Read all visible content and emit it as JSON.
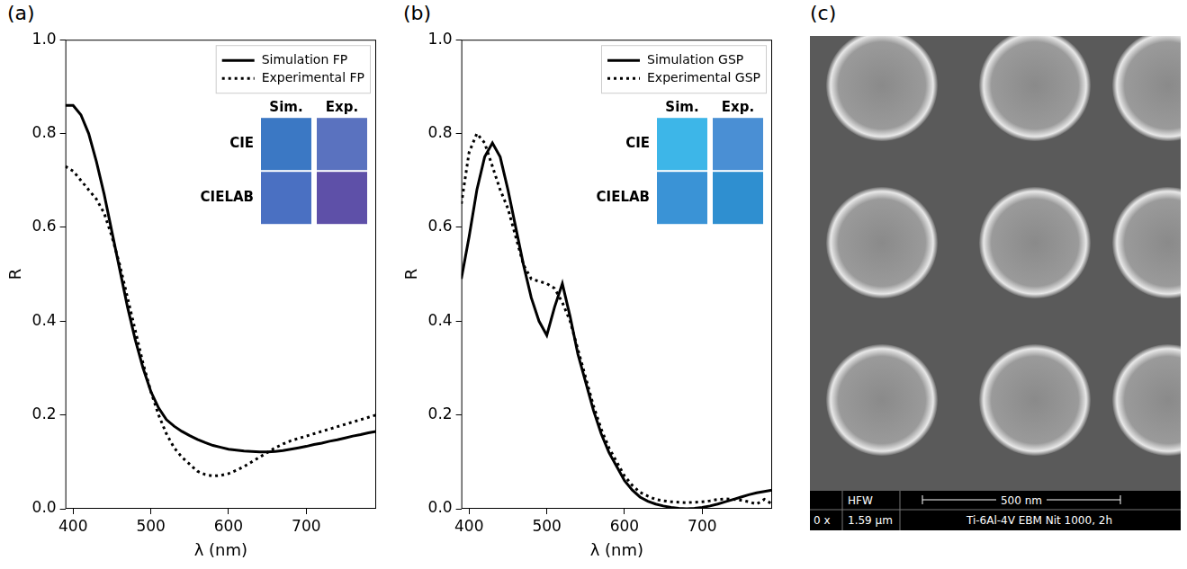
{
  "chart_data": [
    {
      "panel": "(a)",
      "type": "line",
      "x_label": "λ (nm)",
      "y_label": "R",
      "x": [
        390,
        400,
        410,
        420,
        430,
        440,
        450,
        460,
        470,
        480,
        490,
        500,
        510,
        520,
        530,
        540,
        550,
        560,
        570,
        580,
        590,
        600,
        610,
        620,
        630,
        640,
        650,
        660,
        670,
        680,
        690,
        700,
        710,
        720,
        730,
        740,
        750,
        760,
        770,
        780,
        790
      ],
      "xlim": [
        390,
        790
      ],
      "xticks": [
        400,
        500,
        600,
        700
      ],
      "ylim": [
        0,
        1
      ],
      "yticks": [
        {
          "value": 0,
          "label": "0.0"
        },
        {
          "value": 0.2,
          "label": "0.2"
        },
        {
          "value": 0.4,
          "label": "0.4"
        },
        {
          "value": 0.6,
          "label": "0.6"
        },
        {
          "value": 0.8,
          "label": "0.8"
        },
        {
          "value": 1,
          "label": "1.0"
        }
      ],
      "grid": false,
      "legend": "upper right",
      "series": [
        {
          "name": "Simulation FP",
          "color": "#000000",
          "line_style": "solid",
          "values": [
            0.86,
            0.86,
            0.84,
            0.8,
            0.74,
            0.67,
            0.59,
            0.51,
            0.43,
            0.36,
            0.3,
            0.25,
            0.215,
            0.19,
            0.176,
            0.165,
            0.156,
            0.148,
            0.141,
            0.135,
            0.131,
            0.127,
            0.125,
            0.123,
            0.122,
            0.121,
            0.121,
            0.122,
            0.124,
            0.127,
            0.13,
            0.133,
            0.137,
            0.14,
            0.144,
            0.147,
            0.151,
            0.155,
            0.158,
            0.162,
            0.165
          ]
        },
        {
          "name": "Experimental FP",
          "color": "#000000",
          "line_style": "dotted",
          "values": [
            0.73,
            0.72,
            0.7,
            0.68,
            0.66,
            0.63,
            0.58,
            0.52,
            0.45,
            0.38,
            0.31,
            0.25,
            0.2,
            0.16,
            0.13,
            0.11,
            0.095,
            0.08,
            0.073,
            0.07,
            0.071,
            0.075,
            0.082,
            0.09,
            0.1,
            0.11,
            0.12,
            0.13,
            0.138,
            0.145,
            0.15,
            0.155,
            0.16,
            0.165,
            0.17,
            0.175,
            0.18,
            0.185,
            0.19,
            0.195,
            0.2
          ]
        }
      ],
      "color_swatches": {
        "columns": [
          "Sim.",
          "Exp."
        ],
        "rows": [
          {
            "label": "CIE",
            "colors": [
              "#3b78c4",
              "#5a72bf"
            ]
          },
          {
            "label": "CIELAB",
            "colors": [
              "#4a70c2",
              "#5e50a8"
            ]
          }
        ]
      }
    },
    {
      "panel": "(b)",
      "type": "line",
      "x_label": "λ (nm)",
      "y_label": "R",
      "x": [
        390,
        400,
        410,
        420,
        430,
        440,
        450,
        460,
        470,
        480,
        490,
        500,
        510,
        520,
        530,
        540,
        550,
        560,
        570,
        580,
        590,
        600,
        610,
        620,
        630,
        640,
        650,
        660,
        670,
        680,
        690,
        700,
        710,
        720,
        730,
        740,
        750,
        760,
        770,
        780,
        790
      ],
      "xlim": [
        390,
        790
      ],
      "xticks": [
        400,
        500,
        600,
        700
      ],
      "ylim": [
        0,
        1
      ],
      "yticks": [
        {
          "value": 0,
          "label": "0.0"
        },
        {
          "value": 0.2,
          "label": "0.2"
        },
        {
          "value": 0.4,
          "label": "0.4"
        },
        {
          "value": 0.6,
          "label": "0.6"
        },
        {
          "value": 0.8,
          "label": "0.8"
        },
        {
          "value": 1,
          "label": "1.0"
        }
      ],
      "grid": false,
      "legend": "upper right",
      "series": [
        {
          "name": "Simulation GSP",
          "color": "#000000",
          "line_style": "solid",
          "values": [
            0.49,
            0.58,
            0.68,
            0.75,
            0.78,
            0.75,
            0.68,
            0.6,
            0.52,
            0.45,
            0.4,
            0.37,
            0.43,
            0.48,
            0.41,
            0.33,
            0.27,
            0.21,
            0.16,
            0.12,
            0.09,
            0.06,
            0.04,
            0.025,
            0.016,
            0.01,
            0.006,
            0.003,
            0.001,
            0,
            0.001,
            0.003,
            0.006,
            0.01,
            0.015,
            0.02,
            0.025,
            0.03,
            0.034,
            0.037,
            0.04
          ]
        },
        {
          "name": "Experimental GSP",
          "color": "#000000",
          "line_style": "dotted",
          "values": [
            0.65,
            0.76,
            0.8,
            0.78,
            0.73,
            0.68,
            0.64,
            0.58,
            0.52,
            0.49,
            0.485,
            0.48,
            0.47,
            0.44,
            0.4,
            0.34,
            0.28,
            0.22,
            0.17,
            0.13,
            0.1,
            0.07,
            0.05,
            0.035,
            0.027,
            0.02,
            0.017,
            0.015,
            0.014,
            0.013,
            0.014,
            0.015,
            0.017,
            0.02,
            0.021,
            0.02,
            0.018,
            0.015,
            0.01,
            0.02,
            0.01
          ]
        }
      ],
      "color_swatches": {
        "columns": [
          "Sim.",
          "Exp."
        ],
        "rows": [
          {
            "label": "CIE",
            "colors": [
              "#3db6e8",
              "#4a8fd4"
            ]
          },
          {
            "label": "CIELAB",
            "colors": [
              "#3a93d6",
              "#2f8fd0"
            ]
          }
        ]
      }
    }
  ],
  "image_panel": {
    "panel": "(c)",
    "info_labels": [
      "HFW",
      "0 x",
      "1.59 µm"
    ],
    "scale_bar": "500 nm",
    "caption": "Ti-6Al-4V EBM Nit 1000, 2h"
  }
}
